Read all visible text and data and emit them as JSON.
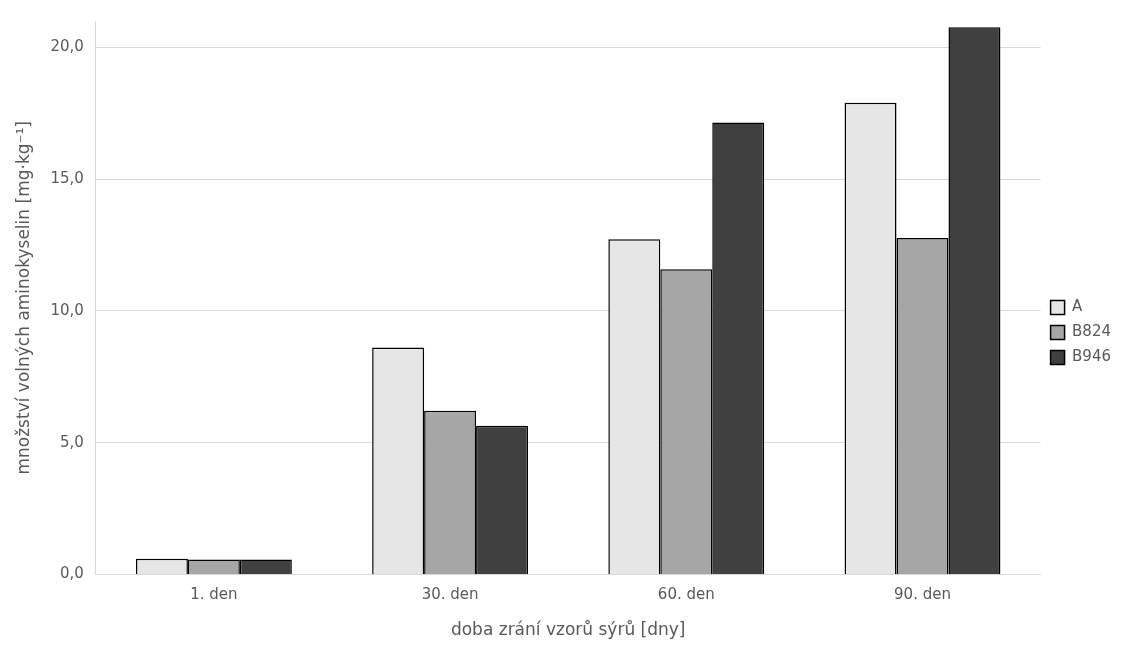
{
  "chart_data": {
    "type": "bar",
    "xlabel": "doba zrání vzorů sýrů [dny]",
    "ylabel": "množství volných aminokyselin [mg·kg⁻¹]",
    "categories": [
      "1. den",
      "30. den",
      "60. den",
      "90. den"
    ],
    "series": [
      {
        "name": "A",
        "color": "#e6e6e6",
        "values": [
          0.6,
          8.61,
          12.72,
          17.9
        ]
      },
      {
        "name": "B824",
        "color": "#a6a6a6",
        "values": [
          0.57,
          6.22,
          11.58,
          12.77
        ]
      },
      {
        "name": "B946",
        "color": "#404040",
        "values": [
          0.57,
          5.65,
          17.15,
          20.76
        ]
      }
    ],
    "ylim": [
      0,
      21
    ],
    "yticks": [
      {
        "value": 0,
        "label": "0,0"
      },
      {
        "value": 5,
        "label": "5,0"
      },
      {
        "value": 10,
        "label": "10,0"
      },
      {
        "value": 15,
        "label": "15,0"
      },
      {
        "value": 20,
        "label": "20,0"
      }
    ],
    "grid": "y",
    "legend": "right"
  }
}
